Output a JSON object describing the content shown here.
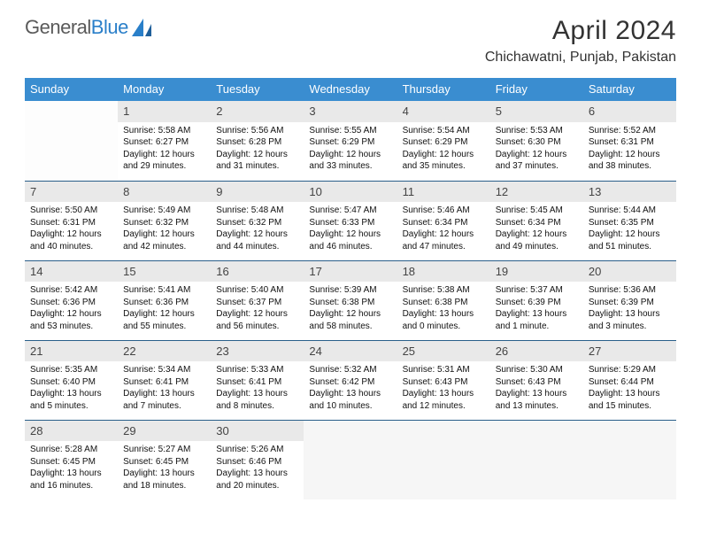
{
  "brand": {
    "part1": "General",
    "part2": "Blue"
  },
  "title": "April 2024",
  "location": "Chichawatni, Punjab, Pakistan",
  "colors": {
    "header_bg": "#3a8dd0",
    "header_text": "#ffffff",
    "daynum_bg": "#e9e9e9",
    "row_border": "#2a5f8a",
    "title_color": "#333333"
  },
  "day_headers": [
    "Sunday",
    "Monday",
    "Tuesday",
    "Wednesday",
    "Thursday",
    "Friday",
    "Saturday"
  ],
  "weeks": [
    [
      {
        "day": null
      },
      {
        "day": 1,
        "sunrise": "Sunrise: 5:58 AM",
        "sunset": "Sunset: 6:27 PM",
        "daylight1": "Daylight: 12 hours",
        "daylight2": "and 29 minutes."
      },
      {
        "day": 2,
        "sunrise": "Sunrise: 5:56 AM",
        "sunset": "Sunset: 6:28 PM",
        "daylight1": "Daylight: 12 hours",
        "daylight2": "and 31 minutes."
      },
      {
        "day": 3,
        "sunrise": "Sunrise: 5:55 AM",
        "sunset": "Sunset: 6:29 PM",
        "daylight1": "Daylight: 12 hours",
        "daylight2": "and 33 minutes."
      },
      {
        "day": 4,
        "sunrise": "Sunrise: 5:54 AM",
        "sunset": "Sunset: 6:29 PM",
        "daylight1": "Daylight: 12 hours",
        "daylight2": "and 35 minutes."
      },
      {
        "day": 5,
        "sunrise": "Sunrise: 5:53 AM",
        "sunset": "Sunset: 6:30 PM",
        "daylight1": "Daylight: 12 hours",
        "daylight2": "and 37 minutes."
      },
      {
        "day": 6,
        "sunrise": "Sunrise: 5:52 AM",
        "sunset": "Sunset: 6:31 PM",
        "daylight1": "Daylight: 12 hours",
        "daylight2": "and 38 minutes."
      }
    ],
    [
      {
        "day": 7,
        "sunrise": "Sunrise: 5:50 AM",
        "sunset": "Sunset: 6:31 PM",
        "daylight1": "Daylight: 12 hours",
        "daylight2": "and 40 minutes."
      },
      {
        "day": 8,
        "sunrise": "Sunrise: 5:49 AM",
        "sunset": "Sunset: 6:32 PM",
        "daylight1": "Daylight: 12 hours",
        "daylight2": "and 42 minutes."
      },
      {
        "day": 9,
        "sunrise": "Sunrise: 5:48 AM",
        "sunset": "Sunset: 6:32 PM",
        "daylight1": "Daylight: 12 hours",
        "daylight2": "and 44 minutes."
      },
      {
        "day": 10,
        "sunrise": "Sunrise: 5:47 AM",
        "sunset": "Sunset: 6:33 PM",
        "daylight1": "Daylight: 12 hours",
        "daylight2": "and 46 minutes."
      },
      {
        "day": 11,
        "sunrise": "Sunrise: 5:46 AM",
        "sunset": "Sunset: 6:34 PM",
        "daylight1": "Daylight: 12 hours",
        "daylight2": "and 47 minutes."
      },
      {
        "day": 12,
        "sunrise": "Sunrise: 5:45 AM",
        "sunset": "Sunset: 6:34 PM",
        "daylight1": "Daylight: 12 hours",
        "daylight2": "and 49 minutes."
      },
      {
        "day": 13,
        "sunrise": "Sunrise: 5:44 AM",
        "sunset": "Sunset: 6:35 PM",
        "daylight1": "Daylight: 12 hours",
        "daylight2": "and 51 minutes."
      }
    ],
    [
      {
        "day": 14,
        "sunrise": "Sunrise: 5:42 AM",
        "sunset": "Sunset: 6:36 PM",
        "daylight1": "Daylight: 12 hours",
        "daylight2": "and 53 minutes."
      },
      {
        "day": 15,
        "sunrise": "Sunrise: 5:41 AM",
        "sunset": "Sunset: 6:36 PM",
        "daylight1": "Daylight: 12 hours",
        "daylight2": "and 55 minutes."
      },
      {
        "day": 16,
        "sunrise": "Sunrise: 5:40 AM",
        "sunset": "Sunset: 6:37 PM",
        "daylight1": "Daylight: 12 hours",
        "daylight2": "and 56 minutes."
      },
      {
        "day": 17,
        "sunrise": "Sunrise: 5:39 AM",
        "sunset": "Sunset: 6:38 PM",
        "daylight1": "Daylight: 12 hours",
        "daylight2": "and 58 minutes."
      },
      {
        "day": 18,
        "sunrise": "Sunrise: 5:38 AM",
        "sunset": "Sunset: 6:38 PM",
        "daylight1": "Daylight: 13 hours",
        "daylight2": "and 0 minutes."
      },
      {
        "day": 19,
        "sunrise": "Sunrise: 5:37 AM",
        "sunset": "Sunset: 6:39 PM",
        "daylight1": "Daylight: 13 hours",
        "daylight2": "and 1 minute."
      },
      {
        "day": 20,
        "sunrise": "Sunrise: 5:36 AM",
        "sunset": "Sunset: 6:39 PM",
        "daylight1": "Daylight: 13 hours",
        "daylight2": "and 3 minutes."
      }
    ],
    [
      {
        "day": 21,
        "sunrise": "Sunrise: 5:35 AM",
        "sunset": "Sunset: 6:40 PM",
        "daylight1": "Daylight: 13 hours",
        "daylight2": "and 5 minutes."
      },
      {
        "day": 22,
        "sunrise": "Sunrise: 5:34 AM",
        "sunset": "Sunset: 6:41 PM",
        "daylight1": "Daylight: 13 hours",
        "daylight2": "and 7 minutes."
      },
      {
        "day": 23,
        "sunrise": "Sunrise: 5:33 AM",
        "sunset": "Sunset: 6:41 PM",
        "daylight1": "Daylight: 13 hours",
        "daylight2": "and 8 minutes."
      },
      {
        "day": 24,
        "sunrise": "Sunrise: 5:32 AM",
        "sunset": "Sunset: 6:42 PM",
        "daylight1": "Daylight: 13 hours",
        "daylight2": "and 10 minutes."
      },
      {
        "day": 25,
        "sunrise": "Sunrise: 5:31 AM",
        "sunset": "Sunset: 6:43 PM",
        "daylight1": "Daylight: 13 hours",
        "daylight2": "and 12 minutes."
      },
      {
        "day": 26,
        "sunrise": "Sunrise: 5:30 AM",
        "sunset": "Sunset: 6:43 PM",
        "daylight1": "Daylight: 13 hours",
        "daylight2": "and 13 minutes."
      },
      {
        "day": 27,
        "sunrise": "Sunrise: 5:29 AM",
        "sunset": "Sunset: 6:44 PM",
        "daylight1": "Daylight: 13 hours",
        "daylight2": "and 15 minutes."
      }
    ],
    [
      {
        "day": 28,
        "sunrise": "Sunrise: 5:28 AM",
        "sunset": "Sunset: 6:45 PM",
        "daylight1": "Daylight: 13 hours",
        "daylight2": "and 16 minutes."
      },
      {
        "day": 29,
        "sunrise": "Sunrise: 5:27 AM",
        "sunset": "Sunset: 6:45 PM",
        "daylight1": "Daylight: 13 hours",
        "daylight2": "and 18 minutes."
      },
      {
        "day": 30,
        "sunrise": "Sunrise: 5:26 AM",
        "sunset": "Sunset: 6:46 PM",
        "daylight1": "Daylight: 13 hours",
        "daylight2": "and 20 minutes."
      },
      {
        "day": null,
        "trailing": true
      },
      {
        "day": null,
        "trailing": true
      },
      {
        "day": null,
        "trailing": true
      },
      {
        "day": null,
        "trailing": true
      }
    ]
  ]
}
